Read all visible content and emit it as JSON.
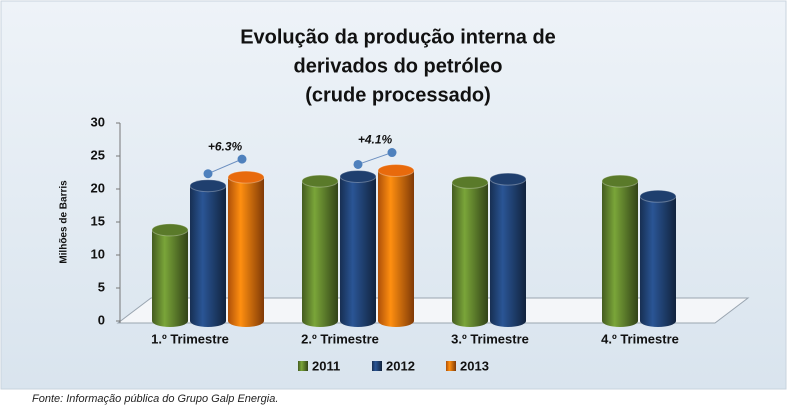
{
  "chart_data": {
    "type": "bar",
    "title": [
      "Evolução da produção interna de",
      "derivados do petróleo",
      "(crude processado)"
    ],
    "y_label": "Milhões de Barris",
    "categories": [
      "1.º Trimestre",
      "2.º Trimestre",
      "3.º Trimestre",
      "4.º Trimestre"
    ],
    "series": [
      {
        "name": "2011",
        "color": "#5a7a2a",
        "values": [
          13.8,
          21.2,
          21.0,
          21.2
        ]
      },
      {
        "name": "2012",
        "color": "#1f3f6e",
        "values": [
          20.5,
          21.9,
          21.5,
          18.9
        ]
      },
      {
        "name": "2013",
        "color": "#e86a0c",
        "values": [
          21.8,
          22.8,
          null,
          null
        ]
      }
    ],
    "annotations": [
      "+6.3%",
      "+4.1%"
    ],
    "ylim": [
      0,
      30
    ],
    "yticks": [
      0,
      5,
      10,
      15,
      20,
      25,
      30
    ],
    "source": "Fonte: Informação pública do Grupo Galp Energia."
  }
}
